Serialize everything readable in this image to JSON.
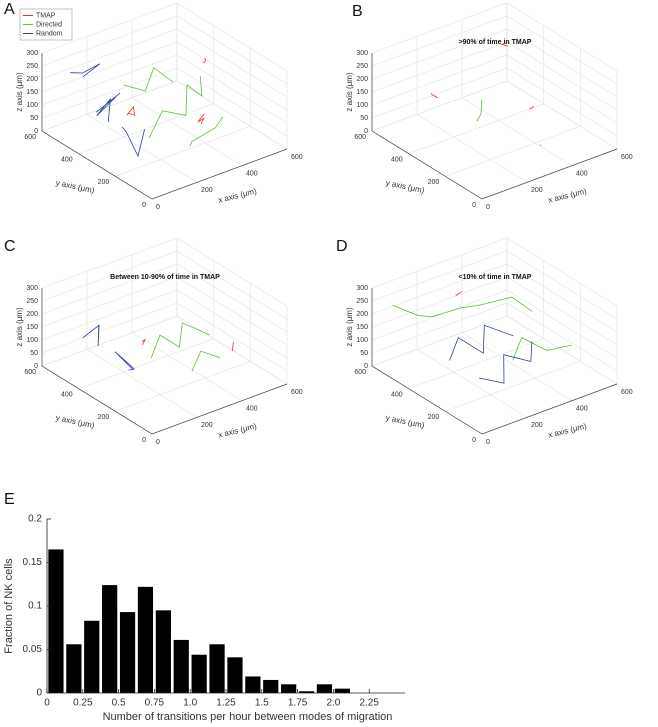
{
  "chart_data": [
    {
      "type": "line3d",
      "label": "A",
      "xlabel": "x axis (μm)",
      "ylabel": "y axis (μm)",
      "zlabel": "z axis (μm)",
      "xlim": [
        0,
        600
      ],
      "ylim": [
        0,
        600
      ],
      "zlim": [
        0,
        300
      ],
      "xticks": [
        0,
        200,
        400,
        600
      ],
      "yticks": [
        0,
        200,
        400,
        600
      ],
      "zticks": [
        0,
        50,
        100,
        150,
        200,
        250,
        300
      ],
      "grid": true,
      "legend": "upper left",
      "series": [
        {
          "name": "TMAP",
          "color": "#e8302a",
          "x": [
            300,
            320,
            310,
            330,
            null,
            480,
            490,
            470,
            485,
            null,
            180,
            200,
            210,
            190
          ],
          "y": [
            100,
            110,
            130,
            120,
            null,
            300,
            310,
            290,
            320,
            null,
            350,
            340,
            360,
            370
          ],
          "z": [
            150,
            160,
            140,
            170,
            null,
            260,
            240,
            250,
            230,
            null,
            120,
            110,
            130,
            100
          ]
        },
        {
          "name": "Directed",
          "color": "#5cc236",
          "x": [
            150,
            250,
            330,
            400,
            450,
            500,
            null,
            200,
            280,
            350,
            420,
            null,
            250,
            300,
            380,
            460
          ],
          "y": [
            200,
            250,
            220,
            300,
            280,
            350,
            null,
            400,
            380,
            420,
            400,
            null,
            100,
            150,
            120,
            180
          ],
          "z": [
            100,
            150,
            120,
            180,
            130,
            160,
            null,
            200,
            160,
            210,
            140,
            null,
            80,
            60,
            100,
            90
          ]
        },
        {
          "name": "Random",
          "color": "#2a3fa8",
          "x": [
            50,
            100,
            80,
            150,
            120,
            200,
            null,
            30,
            90,
            60,
            130,
            null,
            100,
            160,
            140,
            60
          ],
          "y": [
            300,
            350,
            400,
            380,
            450,
            420,
            null,
            200,
            250,
            150,
            200,
            null,
            500,
            480,
            550,
            520
          ],
          "z": [
            150,
            200,
            120,
            180,
            100,
            160,
            null,
            180,
            120,
            80,
            140,
            null,
            220,
            260,
            200,
            240
          ]
        }
      ]
    },
    {
      "type": "line3d",
      "label": "B",
      "title": ">90% of time in TMAP",
      "xlabel": "x axis (μm)",
      "ylabel": "y axis (μm)",
      "zlabel": "z axis (μm)",
      "xlim": [
        0,
        600
      ],
      "ylim": [
        0,
        600
      ],
      "zlim": [
        0,
        300
      ],
      "xticks": [
        0,
        200,
        400,
        600
      ],
      "yticks": [
        0,
        200,
        400,
        600
      ],
      "zticks": [
        0,
        50,
        100,
        150,
        200,
        250,
        300
      ],
      "grid": true,
      "series": [
        {
          "color": "#e8302a",
          "x": [
            100,
            120,
            110,
            130,
            null,
            480,
            470,
            490,
            null,
            350,
            360,
            340,
            null,
            300,
            310
          ],
          "y": [
            400,
            420,
            380,
            410,
            null,
            450,
            470,
            460,
            null,
            150,
            170,
            160,
            null,
            50,
            60
          ],
          "z": [
            200,
            180,
            190,
            170,
            null,
            250,
            240,
            230,
            null,
            180,
            160,
            170,
            null,
            90,
            80
          ]
        },
        {
          "color": "#5cc236",
          "x": [
            260,
            240,
            230
          ],
          "y": [
            320,
            300,
            310
          ],
          "z": [
            160,
            120,
            90
          ]
        }
      ]
    },
    {
      "type": "line3d",
      "label": "C",
      "title": "Between 10-90% of time in TMAP",
      "xlabel": "x axis (μm)",
      "ylabel": "y axis (μm)",
      "zlabel": "z axis (μm)",
      "xlim": [
        0,
        600
      ],
      "ylim": [
        0,
        600
      ],
      "zlim": [
        0,
        300
      ],
      "xticks": [
        0,
        200,
        400,
        600
      ],
      "yticks": [
        0,
        200,
        400,
        600
      ],
      "zticks": [
        0,
        50,
        100,
        150,
        200,
        250,
        300
      ],
      "grid": true,
      "series": [
        {
          "color": "#e8302a",
          "x": [
            200,
            230,
            210,
            null,
            480,
            500
          ],
          "y": [
            300,
            320,
            310,
            null,
            150,
            170
          ],
          "z": [
            160,
            150,
            140,
            null,
            100,
            120
          ]
        },
        {
          "color": "#5cc236",
          "x": [
            200,
            280,
            350,
            420,
            500,
            null,
            300,
            380,
            450
          ],
          "y": [
            250,
            300,
            280,
            350,
            300,
            null,
            150,
            200,
            180
          ],
          "z": [
            120,
            160,
            100,
            140,
            90,
            null,
            80,
            110,
            70
          ]
        },
        {
          "color": "#2a3fa8",
          "x": [
            50,
            90,
            70,
            130,
            100,
            null,
            60,
            120,
            80,
            150
          ],
          "y": [
            350,
            400,
            380,
            450,
            500,
            null,
            200,
            250,
            300,
            280
          ],
          "z": [
            250,
            200,
            150,
            180,
            120,
            null,
            140,
            100,
            160,
            80
          ]
        }
      ]
    },
    {
      "type": "line3d",
      "label": "D",
      "title": "<10% of time in TMAP",
      "xlabel": "x axis (μm)",
      "ylabel": "y axis (μm)",
      "zlabel": "z axis (μm)",
      "xlim": [
        0,
        600
      ],
      "ylim": [
        0,
        600
      ],
      "zlim": [
        0,
        300
      ],
      "xticks": [
        0,
        200,
        400,
        600
      ],
      "yticks": [
        0,
        200,
        400,
        600
      ],
      "zticks": [
        0,
        50,
        100,
        150,
        200,
        250,
        300
      ],
      "grid": true,
      "series": [
        {
          "color": "#e8302a",
          "x": [
            250,
            260,
            270
          ],
          "y": [
            450,
            460,
            440
          ],
          "z": [
            260,
            250,
            270
          ]
        },
        {
          "color": "#5cc236",
          "x": [
            50,
            120,
            200,
            300,
            400,
            500,
            550,
            null,
            300,
            380,
            450,
            520
          ],
          "y": [
            550,
            500,
            520,
            480,
            500,
            450,
            400,
            null,
            200,
            250,
            200,
            150
          ],
          "z": [
            240,
            200,
            160,
            180,
            150,
            170,
            120,
            null,
            100,
            140,
            90,
            110
          ]
        },
        {
          "color": "#2a3fa8",
          "x": [
            100,
            180,
            250,
            320,
            400,
            null,
            150,
            220,
            300,
            380,
            450
          ],
          "y": [
            300,
            350,
            300,
            380,
            320,
            null,
            200,
            150,
            250,
            200,
            280
          ],
          "z": [
            120,
            160,
            100,
            150,
            110,
            null,
            80,
            60,
            100,
            70,
            90
          ]
        }
      ]
    },
    {
      "type": "histogram",
      "label": "E",
      "xlabel": "Number of transitions per hour between modes of migration",
      "ylabel": "Fraction of NK cells",
      "bins": [
        0,
        0.125,
        0.25,
        0.375,
        0.5,
        0.625,
        0.75,
        0.875,
        1,
        1.125,
        1.25,
        1.375,
        1.5,
        1.625,
        1.75,
        1.875,
        2,
        2.125
      ],
      "values": [
        0.165,
        0.056,
        0.083,
        0.124,
        0.093,
        0.122,
        0.095,
        0.061,
        0.044,
        0.056,
        0.041,
        0.019,
        0.015,
        0.01,
        0.002,
        0.01,
        0.005
      ],
      "color": "#000000",
      "xlim": [
        0,
        2.5
      ],
      "ylim": [
        0,
        0.2
      ],
      "xticks": [
        0,
        0.25,
        0.5,
        0.75,
        {
          "value": 1,
          "label": "1.0"
        },
        1.25,
        1.5,
        1.75,
        {
          "value": 2,
          "label": "2.0"
        },
        2.25
      ],
      "yticks": [
        0,
        0.05,
        0.1,
        0.15,
        0.2
      ]
    }
  ]
}
